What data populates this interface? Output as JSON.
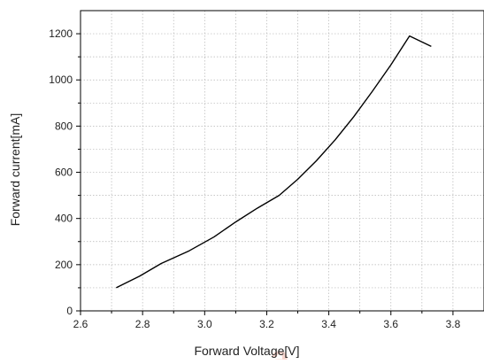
{
  "chart_data": {
    "type": "line",
    "title": "",
    "xlabel": "Forward Voltage[V]",
    "ylabel": "Forward current[mA]",
    "xlim": [
      2.6,
      3.9
    ],
    "ylim": [
      0,
      1300
    ],
    "xticks": [
      2.6,
      2.8,
      3.0,
      3.2,
      3.4,
      3.6,
      3.8
    ],
    "yticks": [
      0,
      200,
      400,
      600,
      800,
      1000,
      1200
    ],
    "xtick_labels": [
      "2.6",
      "2.8",
      "3.0",
      "3.2",
      "3.4",
      "3.6",
      "3.8"
    ],
    "ytick_labels": [
      "0",
      "200",
      "400",
      "600",
      "800",
      "1000",
      "1200"
    ],
    "grid": true,
    "grid_style": "dotted",
    "series": [
      {
        "color": "#000000",
        "x": [
          2.715,
          2.79,
          2.86,
          2.95,
          3.03,
          3.1,
          3.17,
          3.24,
          3.3,
          3.36,
          3.42,
          3.48,
          3.54,
          3.6,
          3.66,
          3.73
        ],
        "y": [
          100,
          150,
          205,
          260,
          320,
          385,
          445,
          500,
          570,
          650,
          740,
          840,
          950,
          1065,
          1190,
          1145
        ]
      }
    ]
  },
  "watermark": {
    "text": "a",
    "color": "#f2b6a8"
  }
}
